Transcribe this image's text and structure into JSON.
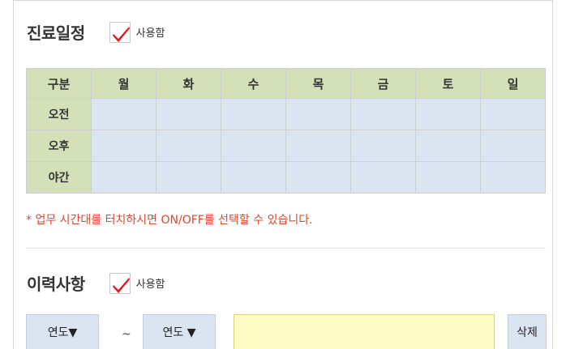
{
  "schedule": {
    "title": "진료일정",
    "use_label": "사용함",
    "use_checked": true,
    "headers": [
      "구분",
      "월",
      "화",
      "수",
      "목",
      "금",
      "토",
      "일"
    ],
    "rows": [
      "오전",
      "오후",
      "야간"
    ],
    "note": "* 업무 시간대를 터치하시면 ON/OFF를 선택할 수 있습니다."
  },
  "history": {
    "title": "이력사항",
    "use_label": "사용함",
    "use_checked": true,
    "from_year": "연도▼",
    "separator": "~",
    "to_year": "연도 ▼",
    "delete_label": "삭제"
  },
  "colors": {
    "header_bg": "#d4e0b8",
    "cell_bg": "#dbe5f1",
    "note_text": "#e0462f",
    "check_mark": "#e8141b",
    "input_bg": "#fefdc6"
  }
}
